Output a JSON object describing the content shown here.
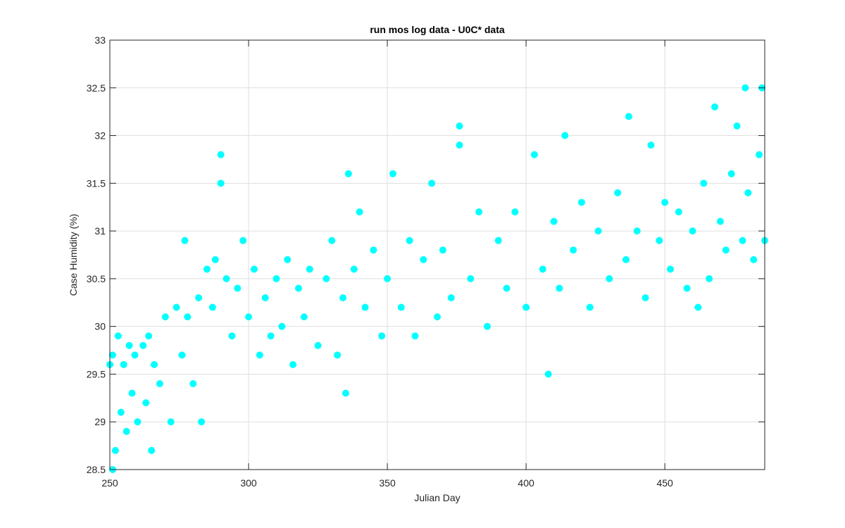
{
  "chart_data": {
    "type": "scatter",
    "title": "run mos log data - U0C* data",
    "xlabel": "Julian Day",
    "ylabel": "Case Humidity (%)",
    "xlim": [
      250,
      486
    ],
    "ylim": [
      28.5,
      33
    ],
    "xticks": [
      250,
      300,
      350,
      400,
      450
    ],
    "xtick_labels": [
      "250",
      "300",
      "350",
      "400",
      "450"
    ],
    "yticks": [
      28.5,
      29,
      29.5,
      30,
      30.5,
      31,
      31.5,
      32,
      32.5,
      33
    ],
    "ytick_labels": [
      "28.5",
      "29",
      "29.5",
      "30",
      "30.5",
      "31",
      "31.5",
      "32",
      "32.5",
      "33"
    ],
    "grid": true,
    "marker_color": "#00FFFF",
    "series": [
      {
        "x": [
          250,
          251,
          251,
          252,
          253,
          254,
          255,
          256,
          257,
          258,
          259,
          260,
          262,
          263,
          264,
          265,
          266,
          268,
          270,
          272,
          274,
          276,
          277,
          278,
          280,
          282,
          283,
          285,
          287,
          288,
          290,
          290,
          292,
          294,
          296,
          298,
          300,
          302,
          304,
          306,
          308,
          310,
          312,
          314,
          316,
          318,
          320,
          322,
          325,
          328,
          330,
          332,
          334,
          335,
          336,
          338,
          340,
          342,
          345,
          348,
          350,
          352,
          355,
          358,
          360,
          363,
          366,
          368,
          370,
          373,
          376,
          376,
          380,
          383,
          386,
          390,
          393,
          396,
          400,
          403,
          406,
          408,
          410,
          412,
          414,
          417,
          420,
          423,
          426,
          430,
          433,
          436,
          437,
          440,
          443,
          445,
          448,
          450,
          452,
          455,
          458,
          460,
          462,
          464,
          466,
          468,
          470,
          472,
          474,
          476,
          478,
          479,
          480,
          482,
          484,
          485,
          486
        ],
        "y": [
          29.6,
          28.5,
          29.7,
          28.7,
          29.9,
          29.1,
          29.6,
          28.9,
          29.8,
          29.3,
          29.7,
          29.0,
          29.8,
          29.2,
          29.9,
          28.7,
          29.6,
          29.4,
          30.1,
          29.0,
          30.2,
          29.7,
          30.9,
          30.1,
          29.4,
          30.3,
          29.0,
          30.6,
          30.2,
          30.7,
          31.8,
          31.5,
          30.5,
          29.9,
          30.4,
          30.9,
          30.1,
          30.6,
          29.7,
          30.3,
          29.9,
          30.5,
          30.0,
          30.7,
          29.6,
          30.4,
          30.1,
          30.6,
          29.8,
          30.5,
          30.9,
          29.7,
          30.3,
          29.3,
          31.6,
          30.6,
          31.2,
          30.2,
          30.8,
          29.9,
          30.5,
          31.6,
          30.2,
          30.9,
          29.9,
          30.7,
          31.5,
          30.1,
          30.8,
          30.3,
          31.9,
          32.1,
          30.5,
          31.2,
          30.0,
          30.9,
          30.4,
          31.2,
          30.2,
          31.8,
          30.6,
          29.5,
          31.1,
          30.4,
          32.0,
          30.8,
          31.3,
          30.2,
          31.0,
          30.5,
          31.4,
          30.7,
          32.2,
          31.0,
          30.3,
          31.9,
          30.9,
          31.3,
          30.6,
          31.2,
          30.4,
          31.0,
          30.2,
          31.5,
          30.5,
          32.3,
          31.1,
          30.8,
          31.6,
          32.1,
          30.9,
          32.5,
          31.4,
          30.7,
          31.8,
          32.5,
          30.9
        ]
      }
    ]
  }
}
